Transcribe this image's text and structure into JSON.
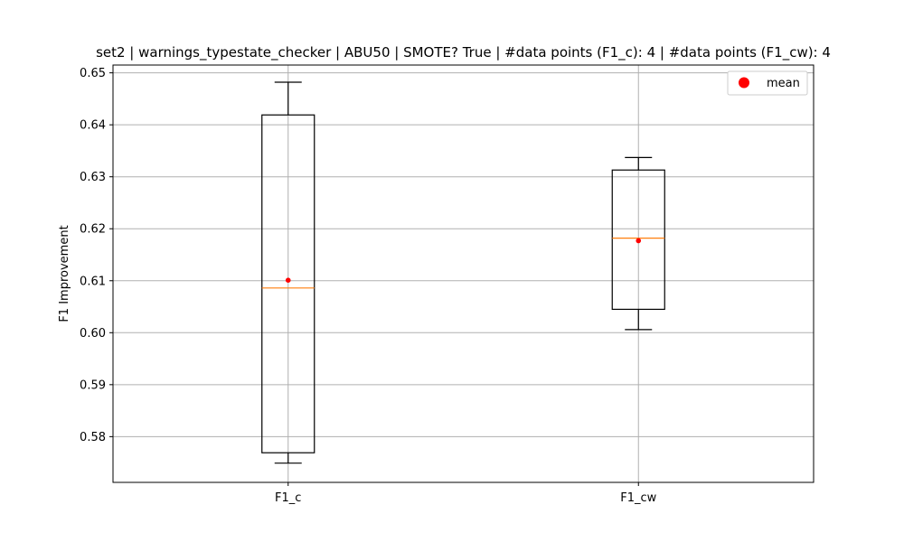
{
  "chart_data": {
    "type": "box",
    "title": "set2 | warnings_typestate_checker | ABU50 | SMOTE? True | #data points (F1_c): 4 | #data points (F1_cw): 4",
    "xlabel": "",
    "ylabel": "F1 Improvement",
    "ylim": [
      0.5712,
      0.6515
    ],
    "yticks": [
      "0.58",
      "0.59",
      "0.60",
      "0.61",
      "0.62",
      "0.63",
      "0.64",
      "0.65"
    ],
    "grid": true,
    "legend": {
      "position": "top-right",
      "entries": [
        {
          "label": "mean",
          "color": "#ff0000"
        }
      ]
    },
    "categories": [
      "F1_c",
      "F1_cw"
    ],
    "boxes": [
      {
        "category": "F1_c",
        "whisker_low": 0.5749,
        "q1": 0.5769,
        "median": 0.6086,
        "q3": 0.6419,
        "whisker_high": 0.6482,
        "mean": 0.6101
      },
      {
        "category": "F1_cw",
        "whisker_low": 0.6006,
        "q1": 0.6045,
        "median": 0.6182,
        "q3": 0.6313,
        "whisker_high": 0.6337,
        "mean": 0.6177
      }
    ],
    "colors": {
      "box": "#000000",
      "median": "#ff7f0e",
      "mean": "#ff0000",
      "grid": "#b0b0b0"
    }
  }
}
